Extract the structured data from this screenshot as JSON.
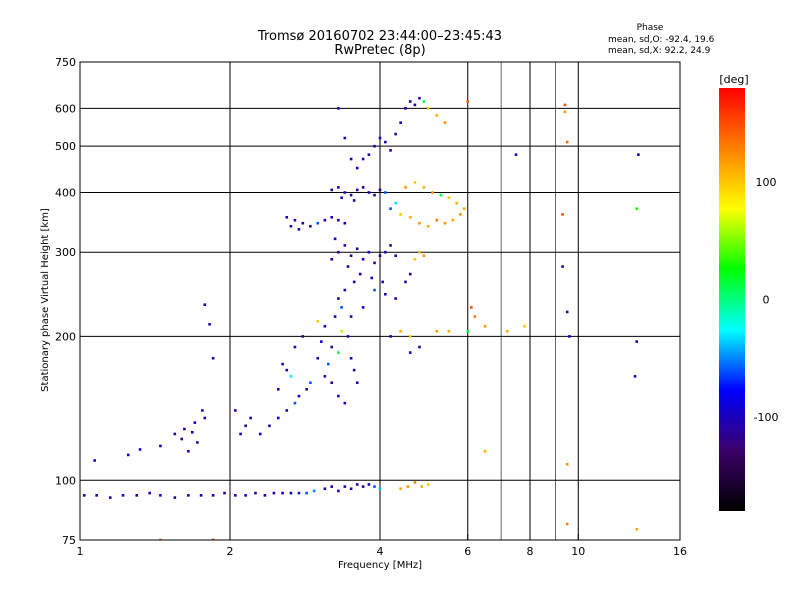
{
  "chart_data": {
    "type": "scatter",
    "title": "Tromsø 20160702 23:44:00–23:45:43",
    "subtitle": "RwPretec (8p)",
    "xlabel": "Frequency [MHz]",
    "ylabel": "Stationary phase Virtual Height [km]",
    "x_scale": "log",
    "y_scale": "log",
    "xlim": [
      1,
      16
    ],
    "ylim": [
      75,
      750
    ],
    "x_ticks": [
      1,
      2,
      4,
      6,
      8,
      10,
      16
    ],
    "x_minor_grid": [
      7,
      9
    ],
    "y_ticks": [
      75,
      100,
      200,
      300,
      400,
      500,
      600,
      750
    ],
    "grid": true,
    "phase_stats": {
      "header": "Phase",
      "line_o": "mean, sd,O: -92.4, 19.6",
      "line_x": "mean, sd,X:  92.2, 24.9"
    },
    "colorbar": {
      "label": "[deg]",
      "range": [
        -180,
        180
      ],
      "ticks": [
        100,
        0,
        -100
      ],
      "colors": [
        "#000000",
        "#3b006a",
        "#0000ff",
        "#00ffff",
        "#00ff00",
        "#ffff00",
        "#ff8000",
        "#ff0000"
      ]
    },
    "series": [
      {
        "name": "",
        "points": [
          [
            1.02,
            93,
            -110
          ],
          [
            1.08,
            93,
            -105
          ],
          [
            1.15,
            92,
            -110
          ],
          [
            1.22,
            93,
            -100
          ],
          [
            1.3,
            93,
            -110
          ],
          [
            1.38,
            94,
            -105
          ],
          [
            1.45,
            93,
            -100
          ],
          [
            1.55,
            92,
            -110
          ],
          [
            1.65,
            93,
            -110
          ],
          [
            1.75,
            93,
            -105
          ],
          [
            1.85,
            93,
            -100
          ],
          [
            1.95,
            94,
            -110
          ],
          [
            2.05,
            93,
            -105
          ],
          [
            2.15,
            93,
            -100
          ],
          [
            2.25,
            94,
            -110
          ],
          [
            2.35,
            93,
            -105
          ],
          [
            2.45,
            94,
            -95
          ],
          [
            2.55,
            94,
            -90
          ],
          [
            2.65,
            94,
            -85
          ],
          [
            2.75,
            94,
            -70
          ],
          [
            2.85,
            94,
            -60
          ],
          [
            2.95,
            95,
            -50
          ],
          [
            3.1,
            96,
            -110
          ],
          [
            3.2,
            97,
            -105
          ],
          [
            3.3,
            95,
            -100
          ],
          [
            3.4,
            97,
            -110
          ],
          [
            3.5,
            96,
            -105
          ],
          [
            3.6,
            98,
            -100
          ],
          [
            3.7,
            97,
            -110
          ],
          [
            3.8,
            98,
            -90
          ],
          [
            3.9,
            97,
            -60
          ],
          [
            4.0,
            96,
            -40
          ],
          [
            4.4,
            96,
            110
          ],
          [
            4.55,
            97,
            120
          ],
          [
            4.7,
            99,
            130
          ],
          [
            4.85,
            97,
            110
          ],
          [
            5.0,
            98,
            100
          ],
          [
            1.07,
            110,
            -100
          ],
          [
            1.25,
            113,
            -110
          ],
          [
            1.32,
            116,
            -105
          ],
          [
            1.45,
            118,
            -100
          ],
          [
            1.55,
            125,
            -110
          ],
          [
            1.62,
            128,
            -105
          ],
          [
            1.7,
            132,
            -100
          ],
          [
            1.78,
            135,
            -110
          ],
          [
            1.6,
            122,
            -120
          ],
          [
            1.68,
            126,
            -100
          ],
          [
            1.72,
            120,
            -110
          ],
          [
            1.76,
            140,
            -105
          ],
          [
            1.65,
            115,
            -100
          ],
          [
            1.85,
            180,
            -115
          ],
          [
            2.05,
            140,
            -110
          ],
          [
            2.1,
            125,
            -100
          ],
          [
            2.15,
            130,
            -120
          ],
          [
            2.2,
            135,
            -110
          ],
          [
            2.3,
            125,
            -100
          ],
          [
            2.4,
            130,
            -110
          ],
          [
            2.5,
            135,
            -90
          ],
          [
            2.6,
            140,
            -110
          ],
          [
            2.7,
            145,
            -60
          ],
          [
            2.75,
            150,
            -100
          ],
          [
            2.85,
            155,
            -110
          ],
          [
            2.9,
            160,
            -60
          ],
          [
            2.5,
            155,
            -100
          ],
          [
            2.6,
            170,
            -110
          ],
          [
            2.7,
            190,
            -100
          ],
          [
            2.8,
            200,
            -120
          ],
          [
            2.65,
            165,
            -30
          ],
          [
            2.55,
            175,
            -100
          ],
          [
            3.0,
            180,
            -110
          ],
          [
            3.05,
            195,
            -100
          ],
          [
            3.1,
            210,
            -105
          ],
          [
            3.2,
            190,
            -110
          ],
          [
            3.25,
            220,
            -100
          ],
          [
            3.3,
            240,
            -110
          ],
          [
            3.35,
            230,
            -60
          ],
          [
            3.4,
            250,
            -100
          ],
          [
            3.45,
            200,
            -110
          ],
          [
            3.5,
            180,
            -105
          ],
          [
            3.55,
            170,
            -110
          ],
          [
            3.6,
            160,
            -100
          ],
          [
            3.2,
            160,
            -110
          ],
          [
            3.3,
            150,
            -105
          ],
          [
            3.4,
            145,
            -100
          ],
          [
            3.1,
            165,
            -110
          ],
          [
            3.15,
            175,
            -60
          ],
          [
            3.3,
            185,
            10
          ],
          [
            3.35,
            205,
            60
          ],
          [
            3.0,
            215,
            100
          ],
          [
            3.2,
            290,
            -105
          ],
          [
            3.3,
            300,
            -110
          ],
          [
            3.4,
            310,
            -100
          ],
          [
            3.5,
            295,
            -120
          ],
          [
            3.6,
            305,
            -110
          ],
          [
            3.7,
            290,
            -100
          ],
          [
            3.8,
            300,
            -110
          ],
          [
            3.9,
            285,
            -105
          ],
          [
            4.0,
            295,
            -100
          ],
          [
            4.1,
            300,
            -110
          ],
          [
            4.2,
            310,
            -100
          ],
          [
            4.3,
            295,
            -110
          ],
          [
            3.25,
            320,
            -100
          ],
          [
            3.45,
            280,
            -110
          ],
          [
            3.65,
            270,
            -100
          ],
          [
            3.85,
            265,
            -105
          ],
          [
            4.05,
            260,
            -100
          ],
          [
            3.55,
            260,
            -110
          ],
          [
            2.6,
            355,
            -100
          ],
          [
            2.7,
            350,
            -105
          ],
          [
            2.8,
            345,
            -110
          ],
          [
            2.9,
            340,
            -100
          ],
          [
            3.0,
            345,
            -60
          ],
          [
            3.1,
            350,
            -110
          ],
          [
            3.2,
            355,
            -100
          ],
          [
            3.3,
            350,
            -105
          ],
          [
            3.4,
            345,
            -110
          ],
          [
            2.65,
            340,
            -100
          ],
          [
            2.75,
            335,
            -110
          ],
          [
            3.2,
            405,
            -110
          ],
          [
            3.3,
            410,
            -100
          ],
          [
            3.4,
            400,
            -105
          ],
          [
            3.5,
            395,
            -110
          ],
          [
            3.6,
            405,
            -100
          ],
          [
            3.7,
            410,
            -110
          ],
          [
            3.8,
            400,
            -105
          ],
          [
            3.9,
            395,
            -100
          ],
          [
            4.0,
            405,
            -110
          ],
          [
            4.1,
            400,
            -60
          ],
          [
            3.35,
            390,
            -100
          ],
          [
            3.55,
            385,
            -110
          ],
          [
            3.8,
            480,
            -110
          ],
          [
            3.9,
            500,
            -100
          ],
          [
            4.0,
            520,
            -105
          ],
          [
            4.1,
            510,
            -110
          ],
          [
            4.2,
            490,
            -100
          ],
          [
            4.3,
            530,
            -110
          ],
          [
            4.4,
            560,
            -100
          ],
          [
            4.5,
            600,
            -105
          ],
          [
            4.6,
            620,
            -110
          ],
          [
            4.7,
            610,
            -100
          ],
          [
            4.8,
            630,
            -110
          ],
          [
            4.9,
            620,
            10
          ],
          [
            5.0,
            600,
            100
          ],
          [
            5.2,
            580,
            110
          ],
          [
            5.4,
            560,
            120
          ],
          [
            3.6,
            450,
            -100
          ],
          [
            3.7,
            470,
            -105
          ],
          [
            3.4,
            520,
            -110
          ],
          [
            3.3,
            600,
            -100
          ],
          [
            3.5,
            470,
            -110
          ],
          [
            4.4,
            360,
            100
          ],
          [
            4.6,
            355,
            110
          ],
          [
            4.8,
            345,
            120
          ],
          [
            5.0,
            340,
            110
          ],
          [
            5.2,
            350,
            130
          ],
          [
            5.4,
            345,
            120
          ],
          [
            5.6,
            350,
            110
          ],
          [
            5.8,
            360,
            120
          ],
          [
            5.9,
            370,
            110
          ],
          [
            4.5,
            410,
            120
          ],
          [
            4.7,
            420,
            100
          ],
          [
            4.9,
            410,
            110
          ],
          [
            5.1,
            400,
            120
          ],
          [
            5.3,
            395,
            10
          ],
          [
            5.5,
            390,
            100
          ],
          [
            5.7,
            380,
            110
          ],
          [
            4.3,
            380,
            -30
          ],
          [
            4.2,
            370,
            -60
          ],
          [
            4.7,
            290,
            100
          ],
          [
            4.8,
            300,
            110
          ],
          [
            4.9,
            295,
            120
          ],
          [
            4.5,
            260,
            -100
          ],
          [
            4.6,
            270,
            -110
          ],
          [
            4.3,
            240,
            -100
          ],
          [
            4.1,
            245,
            -110
          ],
          [
            3.9,
            250,
            -60
          ],
          [
            3.7,
            230,
            -100
          ],
          [
            3.5,
            220,
            -110
          ],
          [
            4.2,
            200,
            -100
          ],
          [
            4.4,
            205,
            110
          ],
          [
            4.6,
            200,
            100
          ],
          [
            4.8,
            190,
            -110
          ],
          [
            4.6,
            185,
            -100
          ],
          [
            5.2,
            205,
            120
          ],
          [
            5.5,
            205,
            110
          ],
          [
            6.5,
            210,
            120
          ],
          [
            7.2,
            205,
            110
          ],
          [
            7.8,
            210,
            100
          ],
          [
            6.0,
            205,
            10
          ],
          [
            6.0,
            620,
            140
          ],
          [
            6.1,
            230,
            150
          ],
          [
            6.2,
            220,
            130
          ],
          [
            6.5,
            115,
            110
          ],
          [
            9.4,
            610,
            150
          ],
          [
            9.4,
            590,
            120
          ],
          [
            9.5,
            510,
            140
          ],
          [
            9.3,
            360,
            150
          ],
          [
            9.3,
            280,
            -110
          ],
          [
            9.5,
            225,
            -120
          ],
          [
            9.6,
            200,
            -100
          ],
          [
            9.5,
            108,
            120
          ],
          [
            9.5,
            81,
            130
          ],
          [
            13.2,
            480,
            -100
          ],
          [
            13.1,
            370,
            30
          ],
          [
            13.1,
            195,
            -110
          ],
          [
            13.0,
            165,
            -100
          ],
          [
            13.1,
            79,
            110
          ],
          [
            7.5,
            480,
            -100
          ],
          [
            1.85,
            75,
            150
          ],
          [
            1.45,
            75,
            130
          ],
          [
            1.78,
            233,
            -100
          ],
          [
            1.82,
            212,
            -110
          ]
        ]
      }
    ]
  }
}
